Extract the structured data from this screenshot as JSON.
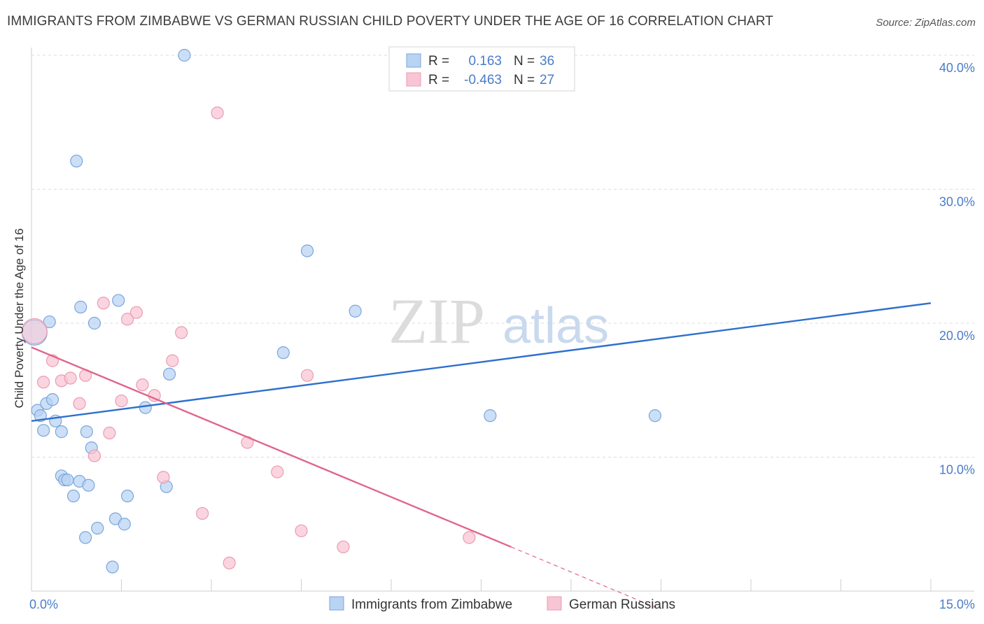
{
  "title": "IMMIGRANTS FROM ZIMBABWE VS GERMAN RUSSIAN CHILD POVERTY UNDER THE AGE OF 16 CORRELATION CHART",
  "source": "Source: ZipAtlas.com",
  "watermark": {
    "zip": "ZIP",
    "atlas": "atlas"
  },
  "colors": {
    "blue_fill": "#b9d3f3",
    "blue_stroke": "#7aa6dd",
    "blue_line": "#2e6fce",
    "pink_fill": "#f8c5d4",
    "pink_stroke": "#eb9bb3",
    "pink_line": "#e0668f",
    "tick": "#4a7cc9",
    "grid": "#dcdcdc"
  },
  "legend_top": [
    {
      "r_label": "R =",
      "r_value": "0.163",
      "n_label": "N =",
      "n_value": "36",
      "color": "blue"
    },
    {
      "r_label": "R =",
      "r_value": "-0.463",
      "n_label": "N =",
      "n_value": "27",
      "color": "pink"
    }
  ],
  "chart_data": {
    "type": "scatter",
    "title": "IMMIGRANTS FROM ZIMBABWE VS GERMAN RUSSIAN CHILD POVERTY UNDER THE AGE OF 16 CORRELATION CHART",
    "xlabel": "",
    "ylabel": "Child Poverty Under the Age of 16",
    "xlim": [
      0,
      15
    ],
    "ylim": [
      0,
      40
    ],
    "x_tick_labels": [
      {
        "value": 0,
        "label": "0.0%"
      },
      {
        "value": 15,
        "label": "15.0%"
      }
    ],
    "x_minor_ticks": [
      1.5,
      3,
      4.5,
      6,
      7.5,
      9,
      10.5,
      12,
      13.5,
      15
    ],
    "y_ticks": [
      {
        "value": 10,
        "label": "10.0%"
      },
      {
        "value": 20,
        "label": "20.0%"
      },
      {
        "value": 30,
        "label": "30.0%"
      },
      {
        "value": 40,
        "label": "40.0%"
      }
    ],
    "grid": true,
    "legend_position": "bottom",
    "series": [
      {
        "name": "Immigrants from Zimbabwe",
        "color": "blue",
        "points": [
          [
            0.05,
            19.3
          ],
          [
            0.1,
            13.5
          ],
          [
            0.15,
            13.1
          ],
          [
            0.2,
            12.0
          ],
          [
            0.25,
            14.0
          ],
          [
            0.3,
            20.1
          ],
          [
            0.35,
            14.3
          ],
          [
            0.4,
            12.7
          ],
          [
            0.5,
            8.6
          ],
          [
            0.5,
            11.9
          ],
          [
            0.55,
            8.3
          ],
          [
            0.6,
            8.3
          ],
          [
            0.7,
            7.1
          ],
          [
            0.75,
            32.1
          ],
          [
            0.8,
            8.2
          ],
          [
            0.82,
            21.2
          ],
          [
            0.9,
            4.0
          ],
          [
            0.92,
            11.9
          ],
          [
            0.95,
            7.9
          ],
          [
            1.0,
            10.7
          ],
          [
            1.05,
            20.0
          ],
          [
            1.1,
            4.7
          ],
          [
            1.35,
            1.8
          ],
          [
            1.4,
            5.4
          ],
          [
            1.45,
            21.7
          ],
          [
            1.55,
            5.0
          ],
          [
            1.6,
            7.1
          ],
          [
            1.9,
            13.7
          ],
          [
            2.25,
            7.8
          ],
          [
            2.3,
            16.2
          ],
          [
            2.55,
            40.0
          ],
          [
            4.2,
            17.8
          ],
          [
            4.6,
            25.4
          ],
          [
            5.4,
            20.9
          ],
          [
            7.65,
            13.1
          ],
          [
            10.4,
            13.1
          ]
        ],
        "trend": {
          "x": [
            0,
            15
          ],
          "y": [
            12.7,
            21.5
          ],
          "style": "solid"
        }
      },
      {
        "name": "German Russians",
        "color": "pink",
        "points": [
          [
            0.05,
            19.4
          ],
          [
            0.2,
            15.6
          ],
          [
            0.35,
            17.2
          ],
          [
            0.5,
            15.7
          ],
          [
            0.65,
            15.9
          ],
          [
            0.8,
            14.0
          ],
          [
            0.9,
            16.1
          ],
          [
            1.05,
            10.1
          ],
          [
            1.2,
            21.5
          ],
          [
            1.3,
            11.8
          ],
          [
            1.5,
            14.2
          ],
          [
            1.6,
            20.3
          ],
          [
            1.75,
            20.8
          ],
          [
            1.85,
            15.4
          ],
          [
            2.05,
            14.6
          ],
          [
            2.2,
            8.5
          ],
          [
            2.35,
            17.2
          ],
          [
            2.5,
            19.3
          ],
          [
            2.85,
            5.8
          ],
          [
            3.1,
            35.7
          ],
          [
            3.3,
            2.1
          ],
          [
            3.6,
            11.1
          ],
          [
            4.1,
            8.9
          ],
          [
            4.5,
            4.5
          ],
          [
            4.6,
            16.1
          ],
          [
            5.2,
            3.3
          ],
          [
            7.3,
            4.0
          ]
        ],
        "trend": {
          "x": [
            0,
            8.0
          ],
          "y": [
            18.2,
            3.3
          ],
          "dash_x": [
            8.0,
            10.4
          ],
          "dash_y": [
            3.3,
            -1.2
          ]
        }
      }
    ]
  }
}
